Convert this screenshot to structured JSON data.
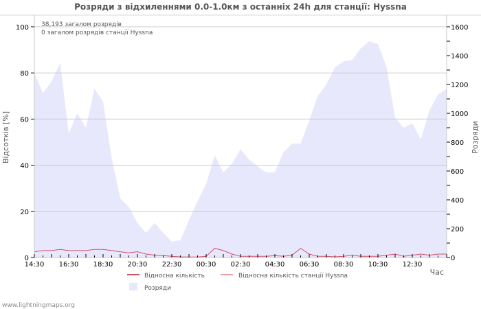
{
  "title": "Розряди з відхиленнями 0.0-1.0км з останніх 24h для станції: Hyssna",
  "info": {
    "total": "38,193 загалом розрядів",
    "station_total": "0 загалом розрядів станції Hyssna"
  },
  "footer": "www.lightningmaps.org",
  "colors": {
    "area": "#e8e8fc",
    "line": "#d0506a",
    "station_line": "#f0a0a8",
    "grid": "#c8c8c8"
  },
  "chart_data": {
    "type": "area",
    "title": "Розряди з відхиленнями 0.0-1.0км з останніх 24h для станції: Hyssna",
    "xlabel": "Час",
    "ylabel": "Відсотків  [%]",
    "y2label": "Розряди",
    "ylim": [
      0,
      105
    ],
    "y2lim": [
      0,
      1600
    ],
    "yticks": [
      0,
      20,
      40,
      60,
      80,
      100
    ],
    "y2ticks": [
      0,
      200,
      400,
      600,
      800,
      1000,
      1200,
      1400,
      1600
    ],
    "xtick_labels": [
      "14:30",
      "16:30",
      "18:30",
      "20:30",
      "22:30",
      "00:30",
      "02:30",
      "04:30",
      "06:30",
      "08:30",
      "10:30",
      "12:30"
    ],
    "grid": true,
    "legend_position": "bottom",
    "legend": [
      "Відносна кількість",
      "Відносна кількість станції Hyssna",
      "Розряди"
    ],
    "interval_minutes": 30,
    "series": [
      {
        "name": "Розряди",
        "axis": "right",
        "type": "area",
        "values": [
          1280,
          1140,
          1220,
          1350,
          860,
          1000,
          900,
          1170,
          1080,
          690,
          410,
          350,
          240,
          170,
          240,
          170,
          110,
          120,
          260,
          390,
          510,
          710,
          590,
          650,
          750,
          680,
          630,
          590,
          590,
          730,
          790,
          790,
          950,
          1120,
          1200,
          1320,
          1360,
          1370,
          1450,
          1500,
          1480,
          1320,
          970,
          900,
          930,
          820,
          1020,
          1130,
          1170
        ]
      },
      {
        "name": "Відносна кількість",
        "axis": "left",
        "type": "line",
        "values": [
          2.5,
          3,
          3,
          3.5,
          3,
          3,
          3,
          3.5,
          3.5,
          3,
          2.5,
          2,
          2.5,
          1.5,
          1,
          0.8,
          0.5,
          0.3,
          0.2,
          0.2,
          0.5,
          4,
          3,
          1.5,
          0.5,
          0.5,
          0.5,
          0.5,
          0.8,
          0.5,
          1,
          4,
          1.5,
          0.5,
          0.5,
          0.3,
          0.5,
          1,
          0.5,
          0.5,
          0.5,
          1,
          1.5,
          0.5,
          1,
          1.5,
          1,
          1.5,
          1.5
        ]
      },
      {
        "name": "Відносна кількість станції Hyssna",
        "axis": "left",
        "type": "line",
        "values": []
      }
    ]
  }
}
